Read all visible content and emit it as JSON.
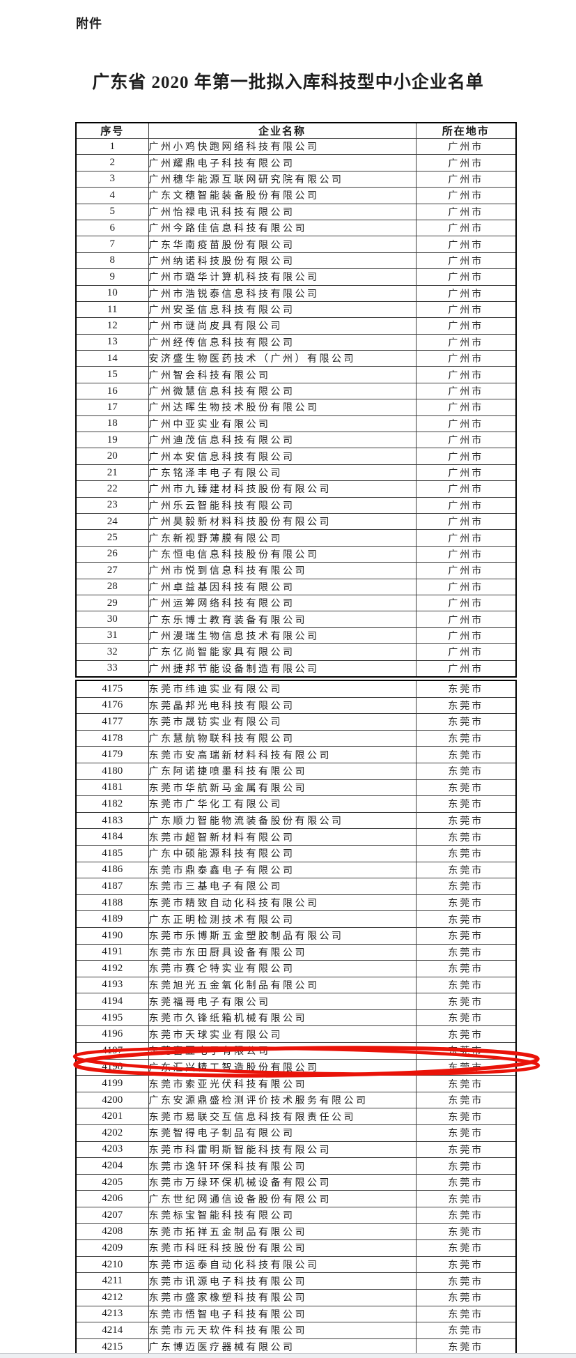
{
  "attachment_label": "附件",
  "title": "广东省 2020 年第一批拟入库科技型中小企业名单",
  "columns": [
    "序号",
    "企业名称",
    "所在地市"
  ],
  "annotation": {
    "type": "red-ellipse",
    "circled_row_no": "4198",
    "color": "#e91309"
  },
  "section1": {
    "rows": [
      {
        "no": "1",
        "name": "广州小鸡快跑网络科技有限公司",
        "city": "广州市"
      },
      {
        "no": "2",
        "name": "广州耀鼎电子科技有限公司",
        "city": "广州市"
      },
      {
        "no": "3",
        "name": "广州穗华能源互联网研究院有限公司",
        "city": "广州市"
      },
      {
        "no": "4",
        "name": "广东文穗智能装备股份有限公司",
        "city": "广州市"
      },
      {
        "no": "5",
        "name": "广州怡禄电讯科技有限公司",
        "city": "广州市"
      },
      {
        "no": "6",
        "name": "广州今路佳信息科技有限公司",
        "city": "广州市"
      },
      {
        "no": "7",
        "name": "广东华南疫苗股份有限公司",
        "city": "广州市"
      },
      {
        "no": "8",
        "name": "广州纳诺科技股份有限公司",
        "city": "广州市"
      },
      {
        "no": "9",
        "name": "广州市璐华计算机科技有限公司",
        "city": "广州市"
      },
      {
        "no": "10",
        "name": "广州市浩锐泰信息科技有限公司",
        "city": "广州市"
      },
      {
        "no": "11",
        "name": "广州安圣信息科技有限公司",
        "city": "广州市"
      },
      {
        "no": "12",
        "name": "广州市谜尚皮具有限公司",
        "city": "广州市"
      },
      {
        "no": "13",
        "name": "广州经传信息科技有限公司",
        "city": "广州市"
      },
      {
        "no": "14",
        "name": "安济盛生物医药技术（广州）有限公司",
        "city": "广州市"
      },
      {
        "no": "15",
        "name": "广州智会科技有限公司",
        "city": "广州市"
      },
      {
        "no": "16",
        "name": "广州微慧信息科技有限公司",
        "city": "广州市"
      },
      {
        "no": "17",
        "name": "广州达晖生物技术股份有限公司",
        "city": "广州市"
      },
      {
        "no": "18",
        "name": "广州中亚实业有限公司",
        "city": "广州市"
      },
      {
        "no": "19",
        "name": "广州迪茂信息科技有限公司",
        "city": "广州市"
      },
      {
        "no": "20",
        "name": "广州本安信息科技有限公司",
        "city": "广州市"
      },
      {
        "no": "21",
        "name": "广东铭泽丰电子有限公司",
        "city": "广州市"
      },
      {
        "no": "22",
        "name": "广州市九臻建材科技股份有限公司",
        "city": "广州市"
      },
      {
        "no": "23",
        "name": "广州乐云智能科技有限公司",
        "city": "广州市"
      },
      {
        "no": "24",
        "name": "广州昊毅新材料科技股份有限公司",
        "city": "广州市"
      },
      {
        "no": "25",
        "name": "广东新视野薄膜有限公司",
        "city": "广州市"
      },
      {
        "no": "26",
        "name": "广东恒电信息科技股份有限公司",
        "city": "广州市"
      },
      {
        "no": "27",
        "name": "广州市悦到信息科技有限公司",
        "city": "广州市"
      },
      {
        "no": "28",
        "name": "广州卓益基因科技有限公司",
        "city": "广州市"
      },
      {
        "no": "29",
        "name": "广州运筹网络科技有限公司",
        "city": "广州市"
      },
      {
        "no": "30",
        "name": "广东乐博士教育装备有限公司",
        "city": "广州市"
      },
      {
        "no": "31",
        "name": "广州漫瑞生物信息技术有限公司",
        "city": "广州市"
      },
      {
        "no": "32",
        "name": "广东亿尚智能家具有限公司",
        "city": "广州市"
      },
      {
        "no": "33",
        "name": "广州捷邦节能设备制造有限公司",
        "city": "广州市"
      }
    ]
  },
  "section2": {
    "rows": [
      {
        "no": "4175",
        "name": "东莞市纬迪实业有限公司",
        "city": "东莞市"
      },
      {
        "no": "4176",
        "name": "东莞晶邦光电科技有限公司",
        "city": "东莞市"
      },
      {
        "no": "4177",
        "name": "东莞市晟钫实业有限公司",
        "city": "东莞市"
      },
      {
        "no": "4178",
        "name": "广东慧航物联科技有限公司",
        "city": "东莞市"
      },
      {
        "no": "4179",
        "name": "东莞市安高瑞新材料科技有限公司",
        "city": "东莞市"
      },
      {
        "no": "4180",
        "name": "广东阿诺捷喷墨科技有限公司",
        "city": "东莞市"
      },
      {
        "no": "4181",
        "name": "东莞市华航新马金属有限公司",
        "city": "东莞市"
      },
      {
        "no": "4182",
        "name": "东莞市广华化工有限公司",
        "city": "东莞市"
      },
      {
        "no": "4183",
        "name": "广东顺力智能物流装备股份有限公司",
        "city": "东莞市"
      },
      {
        "no": "4184",
        "name": "东莞市超智新材料有限公司",
        "city": "东莞市"
      },
      {
        "no": "4185",
        "name": "广东中硕能源科技有限公司",
        "city": "东莞市"
      },
      {
        "no": "4186",
        "name": "东莞市鼎泰鑫电子有限公司",
        "city": "东莞市"
      },
      {
        "no": "4187",
        "name": "东莞市三基电子有限公司",
        "city": "东莞市"
      },
      {
        "no": "4188",
        "name": "东莞市精致自动化科技有限公司",
        "city": "东莞市"
      },
      {
        "no": "4189",
        "name": "广东正明检测技术有限公司",
        "city": "东莞市"
      },
      {
        "no": "4190",
        "name": "东莞市乐博斯五金塑胶制品有限公司",
        "city": "东莞市"
      },
      {
        "no": "4191",
        "name": "东莞市东田厨具设备有限公司",
        "city": "东莞市"
      },
      {
        "no": "4192",
        "name": "东莞市赛仑特实业有限公司",
        "city": "东莞市"
      },
      {
        "no": "4193",
        "name": "东莞旭光五金氧化制品有限公司",
        "city": "东莞市"
      },
      {
        "no": "4194",
        "name": "东莞福哥电子有限公司",
        "city": "东莞市"
      },
      {
        "no": "4195",
        "name": "东莞市久锋纸箱机械有限公司",
        "city": "东莞市"
      },
      {
        "no": "4196",
        "name": "东莞市天球实业有限公司",
        "city": "东莞市"
      },
      {
        "no": "4197",
        "name": "东莞富亚电子有限公司",
        "city": "东莞市"
      },
      {
        "no": "4198",
        "name": "广东汇兴精工智造股份有限公司",
        "city": "东莞市"
      },
      {
        "no": "4199",
        "name": "东莞市索亚光伏科技有限公司",
        "city": "东莞市"
      },
      {
        "no": "4200",
        "name": "广东安源鼎盛检测评价技术服务有限公司",
        "city": "东莞市"
      },
      {
        "no": "4201",
        "name": "东莞市易联交互信息科技有限责任公司",
        "city": "东莞市"
      },
      {
        "no": "4202",
        "name": "东莞智得电子制品有限公司",
        "city": "东莞市"
      },
      {
        "no": "4203",
        "name": "东莞市科雷明斯智能科技有限公司",
        "city": "东莞市"
      },
      {
        "no": "4204",
        "name": "东莞市逸轩环保科技有限公司",
        "city": "东莞市"
      },
      {
        "no": "4205",
        "name": "东莞市万绿环保机械设备有限公司",
        "city": "东莞市"
      },
      {
        "no": "4206",
        "name": "广东世纪网通信设备股份有限公司",
        "city": "东莞市"
      },
      {
        "no": "4207",
        "name": "东莞标宝智能科技有限公司",
        "city": "东莞市"
      },
      {
        "no": "4208",
        "name": "东莞市拓祥五金制品有限公司",
        "city": "东莞市"
      },
      {
        "no": "4209",
        "name": "东莞市科旺科技股份有限公司",
        "city": "东莞市"
      },
      {
        "no": "4210",
        "name": "东莞市运泰自动化科技有限公司",
        "city": "东莞市"
      },
      {
        "no": "4211",
        "name": "东莞市讯源电子科技有限公司",
        "city": "东莞市"
      },
      {
        "no": "4212",
        "name": "东莞市盛家橡塑科技有限公司",
        "city": "东莞市"
      },
      {
        "no": "4213",
        "name": "东莞市悟智电子科技有限公司",
        "city": "东莞市"
      },
      {
        "no": "4214",
        "name": "东莞市元天软件科技有限公司",
        "city": "东莞市"
      },
      {
        "no": "4215",
        "name": "广东博迈医疗器械有限公司",
        "city": "东莞市"
      }
    ]
  }
}
